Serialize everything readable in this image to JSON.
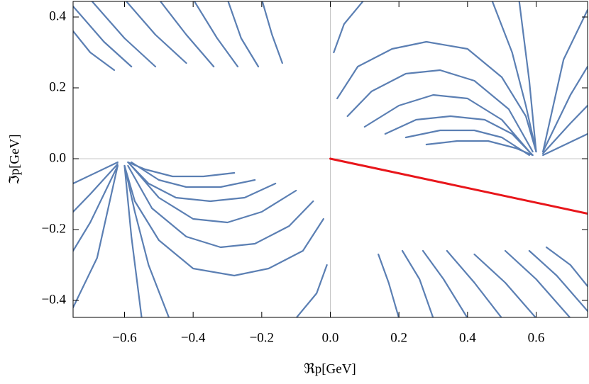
{
  "chart_data": {
    "type": "line",
    "xlabel": "ℜp[GeV]",
    "ylabel": "ℑp[GeV]",
    "xlim": [
      -0.75,
      0.75
    ],
    "ylim": [
      -0.448,
      0.444
    ],
    "xticks": [
      {
        "value": -0.6,
        "label": "−0.6"
      },
      {
        "value": -0.4,
        "label": "−0.4"
      },
      {
        "value": -0.2,
        "label": "−0.2"
      },
      {
        "value": 0,
        "label": "0.0"
      },
      0.2,
      0.4,
      0.6
    ],
    "yticks": [
      {
        "value": -0.4,
        "label": "−0.4"
      },
      {
        "value": -0.2,
        "label": "−0.2"
      },
      {
        "value": 0,
        "label": "0.0"
      },
      0.2,
      0.4
    ],
    "color": "#5b7fb3",
    "series": [
      {
        "x": [
          0.02,
          0.08,
          0.18,
          0.28,
          0.4,
          0.5,
          0.57,
          0.6
        ],
        "y": [
          0.17,
          0.26,
          0.31,
          0.33,
          0.31,
          0.23,
          0.12,
          0.02
        ]
      },
      {
        "x": [
          0.05,
          0.12,
          0.22,
          0.32,
          0.42,
          0.52,
          0.59
        ],
        "y": [
          0.12,
          0.19,
          0.24,
          0.25,
          0.22,
          0.14,
          0.02
        ]
      },
      {
        "x": [
          0.1,
          0.2,
          0.3,
          0.4,
          0.5,
          0.58
        ],
        "y": [
          0.09,
          0.15,
          0.18,
          0.17,
          0.11,
          0.02
        ]
      },
      {
        "x": [
          0.16,
          0.25,
          0.35,
          0.45,
          0.53,
          0.59
        ],
        "y": [
          0.07,
          0.11,
          0.12,
          0.11,
          0.07,
          0.01
        ]
      },
      {
        "x": [
          0.22,
          0.32,
          0.42,
          0.5,
          0.58
        ],
        "y": [
          0.06,
          0.08,
          0.08,
          0.06,
          0.01
        ]
      },
      {
        "x": [
          0.28,
          0.37,
          0.46,
          0.54,
          0.59
        ],
        "y": [
          0.04,
          0.05,
          0.05,
          0.03,
          0.01
        ]
      },
      {
        "x": [
          0.01,
          0.04,
          0.1
        ],
        "y": [
          0.3,
          0.38,
          0.45
        ]
      },
      {
        "x": [
          0.47,
          0.53,
          0.57,
          0.6
        ],
        "y": [
          0.45,
          0.3,
          0.15,
          0.02
        ]
      },
      {
        "x": [
          0.55,
          0.58,
          0.6
        ],
        "y": [
          0.45,
          0.22,
          0.02
        ]
      },
      {
        "x": [
          0.62,
          0.68,
          0.75
        ],
        "y": [
          0.02,
          0.28,
          0.42
        ]
      },
      {
        "x": [
          0.62,
          0.7,
          0.75
        ],
        "y": [
          0.02,
          0.18,
          0.26
        ]
      },
      {
        "x": [
          0.62,
          0.7,
          0.75
        ],
        "y": [
          0.015,
          0.1,
          0.15
        ]
      },
      {
        "x": [
          0.62,
          0.75
        ],
        "y": [
          0.01,
          0.07
        ]
      },
      {
        "x": [
          -0.75,
          -0.7,
          -0.63
        ],
        "y": [
          0.36,
          0.3,
          0.25
        ]
      },
      {
        "x": [
          -0.75,
          -0.66,
          -0.58
        ],
        "y": [
          0.43,
          0.33,
          0.26
        ]
      },
      {
        "x": [
          -0.7,
          -0.6,
          -0.51
        ],
        "y": [
          0.45,
          0.34,
          0.26
        ]
      },
      {
        "x": [
          -0.6,
          -0.51,
          -0.42
        ],
        "y": [
          0.45,
          0.35,
          0.27
        ]
      },
      {
        "x": [
          -0.5,
          -0.42,
          -0.34
        ],
        "y": [
          0.45,
          0.35,
          0.26
        ]
      },
      {
        "x": [
          -0.4,
          -0.33,
          -0.27
        ],
        "y": [
          0.45,
          0.34,
          0.26
        ]
      },
      {
        "x": [
          -0.3,
          -0.26,
          -0.21
        ],
        "y": [
          0.45,
          0.34,
          0.26
        ]
      },
      {
        "x": [
          -0.2,
          -0.17,
          -0.14
        ],
        "y": [
          0.45,
          0.35,
          0.27
        ]
      },
      {
        "x": [
          -0.02,
          -0.08,
          -0.18,
          -0.28,
          -0.4,
          -0.5,
          -0.57,
          -0.6
        ],
        "y": [
          -0.17,
          -0.26,
          -0.31,
          -0.33,
          -0.31,
          -0.23,
          -0.12,
          -0.02
        ]
      },
      {
        "x": [
          -0.05,
          -0.12,
          -0.22,
          -0.32,
          -0.42,
          -0.52,
          -0.59
        ],
        "y": [
          -0.12,
          -0.19,
          -0.24,
          -0.25,
          -0.22,
          -0.14,
          -0.02
        ]
      },
      {
        "x": [
          -0.1,
          -0.2,
          -0.3,
          -0.4,
          -0.5,
          -0.58
        ],
        "y": [
          -0.09,
          -0.15,
          -0.18,
          -0.17,
          -0.11,
          -0.02
        ]
      },
      {
        "x": [
          -0.16,
          -0.25,
          -0.35,
          -0.45,
          -0.53,
          -0.59
        ],
        "y": [
          -0.07,
          -0.11,
          -0.12,
          -0.11,
          -0.07,
          -0.01
        ]
      },
      {
        "x": [
          -0.22,
          -0.32,
          -0.42,
          -0.5,
          -0.58
        ],
        "y": [
          -0.06,
          -0.08,
          -0.08,
          -0.06,
          -0.01
        ]
      },
      {
        "x": [
          -0.28,
          -0.37,
          -0.46,
          -0.54,
          -0.59
        ],
        "y": [
          -0.04,
          -0.05,
          -0.05,
          -0.03,
          -0.01
        ]
      },
      {
        "x": [
          -0.01,
          -0.04,
          -0.1
        ],
        "y": [
          -0.3,
          -0.38,
          -0.45
        ]
      },
      {
        "x": [
          -0.47,
          -0.53,
          -0.57,
          -0.6
        ],
        "y": [
          -0.45,
          -0.3,
          -0.15,
          -0.02
        ]
      },
      {
        "x": [
          -0.55,
          -0.58,
          -0.6
        ],
        "y": [
          -0.45,
          -0.22,
          -0.02
        ]
      },
      {
        "x": [
          -0.62,
          -0.68,
          -0.75
        ],
        "y": [
          -0.02,
          -0.28,
          -0.42
        ]
      },
      {
        "x": [
          -0.62,
          -0.7,
          -0.75
        ],
        "y": [
          -0.02,
          -0.18,
          -0.26
        ]
      },
      {
        "x": [
          -0.62,
          -0.7,
          -0.75
        ],
        "y": [
          -0.015,
          -0.1,
          -0.15
        ]
      },
      {
        "x": [
          -0.62,
          -0.75
        ],
        "y": [
          -0.01,
          -0.07
        ]
      },
      {
        "x": [
          0.75,
          0.7,
          0.63
        ],
        "y": [
          -0.36,
          -0.3,
          -0.25
        ]
      },
      {
        "x": [
          0.75,
          0.66,
          0.58
        ],
        "y": [
          -0.43,
          -0.33,
          -0.26
        ]
      },
      {
        "x": [
          0.7,
          0.6,
          0.51
        ],
        "y": [
          -0.45,
          -0.34,
          -0.26
        ]
      },
      {
        "x": [
          0.6,
          0.51,
          0.42
        ],
        "y": [
          -0.45,
          -0.35,
          -0.27
        ]
      },
      {
        "x": [
          0.5,
          0.42,
          0.34
        ],
        "y": [
          -0.45,
          -0.35,
          -0.26
        ]
      },
      {
        "x": [
          0.4,
          0.33,
          0.27
        ],
        "y": [
          -0.45,
          -0.34,
          -0.26
        ]
      },
      {
        "x": [
          0.3,
          0.26,
          0.21
        ],
        "y": [
          -0.45,
          -0.34,
          -0.26
        ]
      },
      {
        "x": [
          0.2,
          0.17,
          0.14
        ],
        "y": [
          -0.45,
          -0.35,
          -0.27
        ]
      },
      {
        "x": [
          0,
          0.75
        ],
        "y": [
          0,
          -0.155
        ],
        "color": "#e8161b"
      }
    ]
  }
}
